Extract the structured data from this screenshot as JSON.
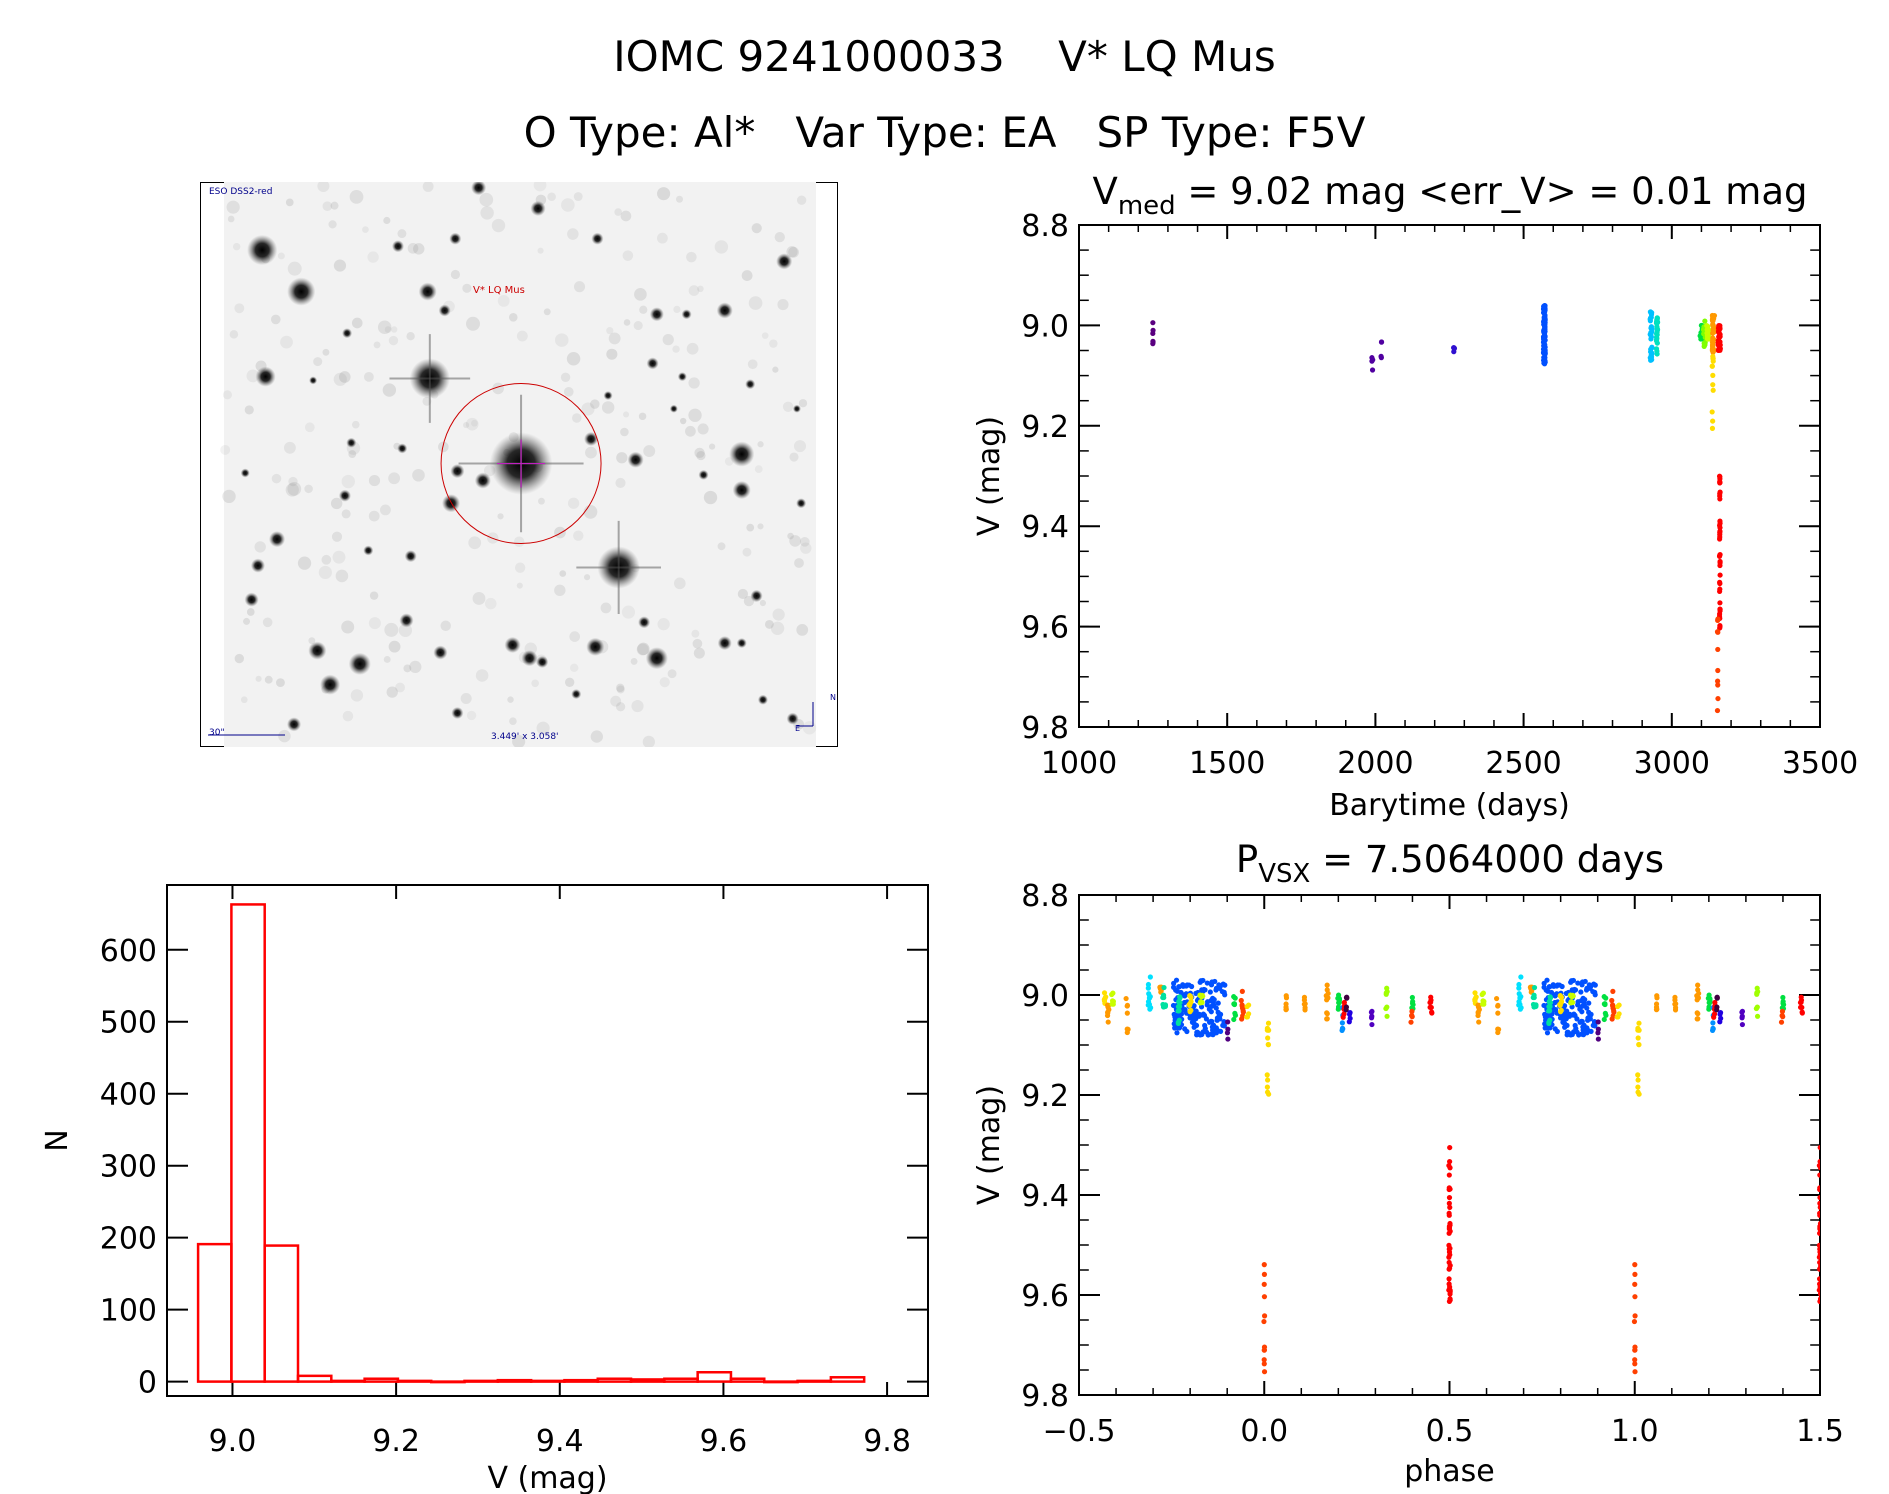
{
  "header": {
    "title": "IOMC 9241000033    V* LQ Mus",
    "subtitle": "O Type: Al*   Var Type: EA   SP Type: F5V"
  },
  "sky_image": {
    "survey_label": "ESO DSS2-red",
    "target_label": "V* LQ Mus",
    "scale_label": "30\"",
    "field_label": "3.449' x 3.058'",
    "north_label": "N",
    "east_label": "E",
    "background": "#f2f2f2",
    "label_color": "#00008b",
    "target_color": "#cc0000"
  },
  "chart_data": [
    {
      "id": "light_curve",
      "type": "scatter",
      "title_main": "V",
      "title_sub": "med",
      "title_rest": " = 9.02 mag <err_V> = 0.01 mag",
      "xlabel": "Barytime (days)",
      "ylabel": "V (mag)",
      "xlim": [
        1000,
        3500
      ],
      "ylim": [
        9.8,
        8.8
      ],
      "y_inverted": true,
      "xticks": [
        1000,
        1500,
        2000,
        2500,
        3000,
        3500
      ],
      "xtick_labels": [
        "1000",
        "1500",
        "2000",
        "2500",
        "3000",
        "3500"
      ],
      "yticks": [
        8.8,
        9.0,
        9.2,
        9.4,
        9.6,
        9.8
      ],
      "ytick_labels": [
        "8.8",
        "9.0",
        "9.2",
        "9.4",
        "9.6",
        "9.8"
      ],
      "xminor": 100,
      "yminor": 0.05,
      "groups": [
        {
          "x": 1250,
          "dx": 1,
          "v": [
            8.99,
            9.04
          ],
          "n": 6,
          "color": "#5a0080"
        },
        {
          "x": 1990,
          "dx": 2,
          "v": [
            9.06,
            9.09
          ],
          "n": 4,
          "color": "#5000a0"
        },
        {
          "x": 2020,
          "dx": 2,
          "v": [
            9.03,
            9.07
          ],
          "n": 4,
          "color": "#5000a0"
        },
        {
          "x": 2265,
          "dx": 2,
          "v": [
            9.04,
            9.06
          ],
          "n": 4,
          "color": "#3010d0"
        },
        {
          "x": 2570,
          "dx": 3,
          "v": [
            8.96,
            9.08
          ],
          "n": 90,
          "color": "#0050ff"
        },
        {
          "x": 2930,
          "dx": 3,
          "v": [
            8.97,
            9.07
          ],
          "n": 30,
          "color": "#00c0ff"
        },
        {
          "x": 2950,
          "dx": 2,
          "v": [
            8.98,
            9.06
          ],
          "n": 25,
          "color": "#00e0c0"
        },
        {
          "x": 3100,
          "dx": 6,
          "v": [
            9.0,
            9.03
          ],
          "n": 20,
          "color": "#00e040"
        },
        {
          "x": 3110,
          "dx": 3,
          "v": [
            8.99,
            9.05
          ],
          "n": 15,
          "color": "#80ff00"
        },
        {
          "x": 3122,
          "dx": 4,
          "v": [
            9.0,
            9.03
          ],
          "n": 20,
          "color": "#c8ff00"
        },
        {
          "x": 3140,
          "dx": 4,
          "v": [
            8.98,
            9.06
          ],
          "n": 40,
          "color": "#ff9900"
        },
        {
          "x": 3138,
          "dx": 2,
          "v": [
            9.06,
            9.21
          ],
          "n": 12,
          "color": "#ffdd00"
        },
        {
          "x": 3160,
          "dx": 4,
          "v": [
            9.0,
            9.05
          ],
          "n": 40,
          "color": "#ff0000"
        },
        {
          "x": 3162,
          "dx": 1,
          "v": [
            9.3,
            9.62
          ],
          "n": 40,
          "color": "#ff0000"
        },
        {
          "x": 3155,
          "dx": 1,
          "v": [
            9.58,
            9.77
          ],
          "n": 10,
          "color": "#ff4000"
        }
      ]
    },
    {
      "id": "phased_curve",
      "type": "scatter",
      "title_main": "P",
      "title_sub": "VSX",
      "title_rest": " = 7.5064000 days",
      "xlabel": "phase",
      "ylabel": "V (mag)",
      "xlim": [
        -0.5,
        1.5
      ],
      "ylim": [
        9.8,
        8.8
      ],
      "y_inverted": true,
      "xticks": [
        -0.5,
        0.0,
        0.5,
        1.0,
        1.5
      ],
      "xtick_labels": [
        "−0.5",
        "0.0",
        "0.5",
        "1.0",
        "1.5"
      ],
      "yticks": [
        8.8,
        9.0,
        9.2,
        9.4,
        9.6,
        9.8
      ],
      "ytick_labels": [
        "8.8",
        "9.0",
        "9.2",
        "9.4",
        "9.6",
        "9.8"
      ],
      "xminor": 0.1,
      "yminor": 0.05,
      "period_days": 7.5064,
      "groups": [
        {
          "x": -0.43,
          "dx": 0.003,
          "v": [
            8.99,
            9.02
          ],
          "n": 6,
          "color": "#ffe000"
        },
        {
          "x": -0.42,
          "dx": 0.003,
          "v": [
            9.0,
            9.07
          ],
          "n": 8,
          "color": "#ff9900"
        },
        {
          "x": -0.41,
          "dx": 0.003,
          "v": [
            8.99,
            9.02
          ],
          "n": 6,
          "color": "#c8ff00"
        },
        {
          "x": -0.37,
          "dx": 0.003,
          "v": [
            9.0,
            9.08
          ],
          "n": 7,
          "color": "#ff9900"
        },
        {
          "x": -0.31,
          "dx": 0.004,
          "v": [
            8.96,
            9.04
          ],
          "n": 12,
          "color": "#00e0ff"
        },
        {
          "x": -0.28,
          "dx": 0.003,
          "v": [
            8.97,
            9.0
          ],
          "n": 5,
          "color": "#ff9900"
        },
        {
          "x": -0.27,
          "dx": 0.004,
          "v": [
            8.98,
            9.03
          ],
          "n": 10,
          "color": "#00e0a0"
        },
        {
          "x": -0.175,
          "dx": 0.07,
          "v": [
            8.97,
            9.08
          ],
          "n": 170,
          "color": "#0050ff"
        },
        {
          "x": -0.23,
          "dx": 0.003,
          "v": [
            8.98,
            9.06
          ],
          "n": 12,
          "color": "#00e0a0"
        },
        {
          "x": -0.2,
          "dx": 0.003,
          "v": [
            9.0,
            9.04
          ],
          "n": 10,
          "color": "#ffe000"
        },
        {
          "x": -0.17,
          "dx": 0.004,
          "v": [
            9.0,
            9.02
          ],
          "n": 10,
          "color": "#c8ff00"
        },
        {
          "x": -0.1,
          "dx": 0.002,
          "v": [
            9.05,
            9.09
          ],
          "n": 4,
          "color": "#500080"
        },
        {
          "x": -0.08,
          "dx": 0.003,
          "v": [
            9.0,
            9.05
          ],
          "n": 8,
          "color": "#00e040"
        },
        {
          "x": -0.06,
          "dx": 0.004,
          "v": [
            8.99,
            9.05
          ],
          "n": 10,
          "color": "#ff4000"
        },
        {
          "x": -0.045,
          "dx": 0.003,
          "v": [
            9.02,
            9.05
          ],
          "n": 6,
          "color": "#ffe000"
        },
        {
          "x": 0.01,
          "dx": 0.002,
          "v": [
            9.05,
            9.2
          ],
          "n": 12,
          "color": "#ffdd00"
        },
        {
          "x": 0.0,
          "dx": 0.001,
          "v": [
            9.52,
            9.76
          ],
          "n": 12,
          "color": "#ff4000"
        },
        {
          "x": 0.06,
          "dx": 0.002,
          "v": [
            8.99,
            9.03
          ],
          "n": 6,
          "color": "#ff9900"
        },
        {
          "x": 0.11,
          "dx": 0.002,
          "v": [
            8.99,
            9.03
          ],
          "n": 6,
          "color": "#ff9900"
        },
        {
          "x": 0.17,
          "dx": 0.003,
          "v": [
            8.97,
            9.05
          ],
          "n": 10,
          "color": "#ff9900"
        },
        {
          "x": 0.2,
          "dx": 0.003,
          "v": [
            9.0,
            9.03
          ],
          "n": 10,
          "color": "#00e040"
        },
        {
          "x": 0.21,
          "dx": 0.002,
          "v": [
            9.0,
            9.08
          ],
          "n": 6,
          "color": "#0090ff"
        },
        {
          "x": 0.215,
          "dx": 0.002,
          "v": [
            9.01,
            9.05
          ],
          "n": 8,
          "color": "#ff0000"
        },
        {
          "x": 0.222,
          "dx": 0.001,
          "v": [
            9.0,
            9.04
          ],
          "n": 5,
          "color": "#400040"
        },
        {
          "x": 0.23,
          "dx": 0.002,
          "v": [
            9.03,
            9.06
          ],
          "n": 4,
          "color": "#2000e0"
        },
        {
          "x": 0.29,
          "dx": 0.001,
          "v": [
            9.03,
            9.08
          ],
          "n": 5,
          "color": "#5000c0"
        },
        {
          "x": 0.33,
          "dx": 0.002,
          "v": [
            8.98,
            9.05
          ],
          "n": 7,
          "color": "#a0ff00"
        },
        {
          "x": 0.4,
          "dx": 0.002,
          "v": [
            9.0,
            9.03
          ],
          "n": 6,
          "color": "#00e040"
        },
        {
          "x": 0.398,
          "dx": 0.002,
          "v": [
            9.03,
            9.06
          ],
          "n": 5,
          "color": "#ff4000"
        },
        {
          "x": 0.45,
          "dx": 0.003,
          "v": [
            9.0,
            9.04
          ],
          "n": 8,
          "color": "#ff0000"
        },
        {
          "x": 0.5,
          "dx": 0.002,
          "v": [
            9.3,
            9.62
          ],
          "n": 40,
          "color": "#ff0000"
        }
      ]
    },
    {
      "id": "histogram",
      "type": "bar",
      "xlabel": "V (mag)",
      "ylabel": "N",
      "xlim": [
        8.92,
        9.85
      ],
      "ylim": [
        -20,
        690
      ],
      "xticks": [
        9.0,
        9.2,
        9.4,
        9.6,
        9.8
      ],
      "xtick_labels": [
        "9.0",
        "9.2",
        "9.4",
        "9.6",
        "9.8"
      ],
      "yticks": [
        0,
        100,
        200,
        300,
        400,
        500,
        600
      ],
      "ytick_labels": [
        "0",
        "100",
        "200",
        "300",
        "400",
        "500",
        "600"
      ],
      "bin_start": 8.958,
      "bin_width": 0.0407,
      "values": [
        191,
        663,
        189,
        8,
        1,
        4,
        1,
        0,
        1,
        2,
        1,
        2,
        4,
        3,
        4,
        13,
        4,
        0,
        1,
        6
      ],
      "bar_color": "#ff0000"
    }
  ]
}
